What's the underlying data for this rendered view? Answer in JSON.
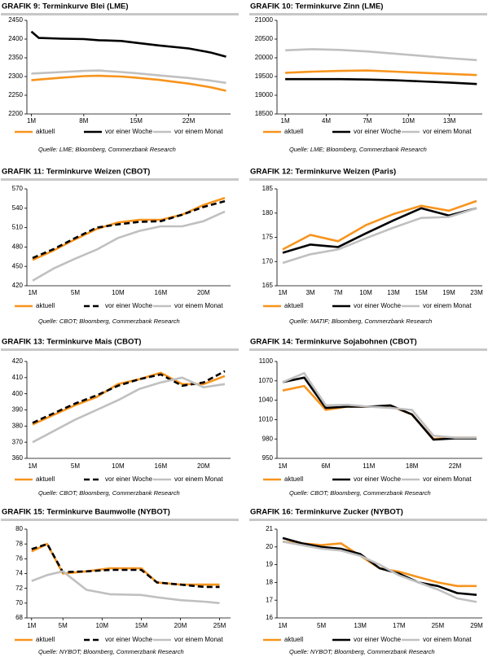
{
  "chart_data": [
    {
      "type": "line",
      "title": "GRAFIK 9: Terminkurve Blei (LME)",
      "source": "Quelle: LME; Bloomberg, Commerzbank Research",
      "x": [
        1,
        2,
        5,
        8,
        10,
        13,
        15,
        18,
        22,
        25,
        27
      ],
      "xlim": [
        0.4,
        27.6
      ],
      "xticks": [
        {
          "value": 1,
          "label": "1M"
        },
        {
          "value": 8,
          "label": "8M"
        },
        {
          "value": 15,
          "label": "15M"
        },
        {
          "value": 22,
          "label": "22M"
        }
      ],
      "ylim": [
        2200,
        2450
      ],
      "yticks": [
        2200,
        2250,
        2300,
        2350,
        2400,
        2450
      ],
      "series": [
        {
          "name": "aktuell",
          "color": "#f7941d",
          "dashed": false,
          "values": [
            2290,
            2292,
            2297,
            2301,
            2302,
            2300,
            2297,
            2291,
            2281,
            2271,
            2262
          ]
        },
        {
          "name": "vor einer Woche",
          "color": "#000000",
          "dashed": false,
          "values": [
            2420,
            2403,
            2401,
            2400,
            2397,
            2395,
            2390,
            2383,
            2375,
            2364,
            2353
          ]
        },
        {
          "name": "vor einem Monat",
          "color": "#c0c0c0",
          "dashed": false,
          "values": [
            2308,
            2309,
            2312,
            2315,
            2316,
            2312,
            2309,
            2303,
            2296,
            2289,
            2283
          ]
        }
      ]
    },
    {
      "type": "line",
      "title": "GRAFIK 10: Terminkurve Zinn (LME)",
      "source": "Quelle: LME; Bloomberg, Commerzbank Research",
      "x": [
        1,
        3,
        5,
        7,
        9,
        11,
        13,
        15
      ],
      "xlim": [
        0.4,
        15.4
      ],
      "xticks": [
        {
          "value": 1,
          "label": "1M"
        },
        {
          "value": 4,
          "label": "4M"
        },
        {
          "value": 7,
          "label": "7M"
        },
        {
          "value": 10,
          "label": "10M"
        },
        {
          "value": 13,
          "label": "13M"
        }
      ],
      "ylim": [
        18500,
        21000
      ],
      "yticks": [
        18500,
        19000,
        19500,
        20000,
        20500,
        21000
      ],
      "series": [
        {
          "name": "aktuell",
          "color": "#f7941d",
          "dashed": false,
          "values": [
            19600,
            19630,
            19650,
            19660,
            19630,
            19600,
            19570,
            19540
          ]
        },
        {
          "name": "vor einer Woche",
          "color": "#000000",
          "dashed": false,
          "values": [
            19430,
            19430,
            19430,
            19420,
            19400,
            19370,
            19340,
            19300
          ]
        },
        {
          "name": "vor einem Monat",
          "color": "#c0c0c0",
          "dashed": false,
          "values": [
            20200,
            20230,
            20210,
            20170,
            20110,
            20050,
            19990,
            19940
          ]
        }
      ]
    },
    {
      "type": "line",
      "title": "GRAFIK 11: Terminkurve Weizen (CBOT)",
      "source": "Quelle: CBOT; Bloomberg, Commerzbank Research",
      "categories": [
        "1M",
        null,
        "5M",
        null,
        "10M",
        null,
        "16M",
        null,
        "20M",
        null
      ],
      "ylim": [
        420,
        570
      ],
      "yticks": [
        420,
        450,
        480,
        510,
        540,
        570
      ],
      "series": [
        {
          "name": "aktuell",
          "color": "#f7941d",
          "dashed": false,
          "values": [
            460,
            475,
            492,
            508,
            518,
            522,
            522,
            530,
            545,
            556
          ]
        },
        {
          "name": "vor einer Woche",
          "color": "#000000",
          "dashed": true,
          "values": [
            463,
            477,
            494,
            510,
            515,
            519,
            520,
            530,
            542,
            551
          ]
        },
        {
          "name": "vor einem Monat",
          "color": "#c0c0c0",
          "dashed": false,
          "values": [
            428,
            447,
            462,
            476,
            494,
            505,
            512,
            512,
            520,
            535
          ]
        }
      ]
    },
    {
      "type": "line",
      "title": "GRAFIK 12: Terminkurve Weizen (Paris)",
      "source": "Quelle: MATIF; Bloomberg, Commerzbank Research",
      "categories": [
        "1M",
        "3M",
        "7M",
        "10M",
        "13M",
        "15M",
        "19M",
        "23M"
      ],
      "ylim": [
        165,
        185
      ],
      "yticks": [
        165,
        170,
        175,
        180,
        185
      ],
      "series": [
        {
          "name": "aktuell",
          "color": "#f7941d",
          "dashed": false,
          "values": [
            172.5,
            175.5,
            174.2,
            177.5,
            179.8,
            181.5,
            180.5,
            182.5
          ]
        },
        {
          "name": "vor einer Woche",
          "color": "#000000",
          "dashed": false,
          "values": [
            171.8,
            173.5,
            173.0,
            175.8,
            178.5,
            181.0,
            179.5,
            181.0
          ]
        },
        {
          "name": "vor einem Monat",
          "color": "#c0c0c0",
          "dashed": false,
          "values": [
            169.7,
            171.5,
            172.5,
            174.8,
            177.0,
            179.0,
            179.2,
            181.0
          ]
        }
      ]
    },
    {
      "type": "line",
      "title": "GRAFIK 13: Terminkurve Mais (CBOT)",
      "source": "Quelle: CBOT; Bloomberg, Commerzbank Research",
      "categories": [
        "1M",
        null,
        "5M",
        null,
        "10M",
        null,
        "16M",
        null,
        "20M",
        null
      ],
      "ylim": [
        360,
        420
      ],
      "yticks": [
        360,
        370,
        380,
        390,
        400,
        410,
        420
      ],
      "series": [
        {
          "name": "aktuell",
          "color": "#f7941d",
          "dashed": false,
          "values": [
            381,
            387,
            393,
            398,
            406,
            409,
            413,
            406,
            406,
            411
          ]
        },
        {
          "name": "vor einer Woche",
          "color": "#000000",
          "dashed": true,
          "values": [
            382,
            388,
            394,
            399,
            405,
            409,
            412,
            405,
            407,
            414
          ]
        },
        {
          "name": "vor einem Monat",
          "color": "#c0c0c0",
          "dashed": false,
          "values": [
            370,
            377,
            384,
            390,
            396,
            403,
            407,
            410,
            404,
            406
          ]
        }
      ]
    },
    {
      "type": "line",
      "title": "GRAFIK 14: Terminkurve Sojabohnen (CBOT)",
      "source": "Quelle: CBOT; Bloomberg, Commerzbank Research",
      "categories": [
        "1M",
        null,
        "6M",
        null,
        "11M",
        null,
        "18M",
        null,
        "22M",
        null
      ],
      "ylim": [
        950,
        1100
      ],
      "yticks": [
        950,
        980,
        1010,
        1040,
        1070,
        1100
      ],
      "series": [
        {
          "name": "aktuell",
          "color": "#f7941d",
          "dashed": false,
          "values": [
            1055,
            1062,
            1025,
            1030,
            1030,
            1031,
            1018,
            980,
            982,
            982
          ]
        },
        {
          "name": "vor einer Woche",
          "color": "#000000",
          "dashed": false,
          "values": [
            1068,
            1075,
            1028,
            1030,
            1030,
            1032,
            1018,
            979,
            981,
            981
          ]
        },
        {
          "name": "vor einem Monat",
          "color": "#c0c0c0",
          "dashed": false,
          "values": [
            1068,
            1082,
            1032,
            1033,
            1030,
            1028,
            1025,
            985,
            982,
            982
          ]
        }
      ]
    },
    {
      "type": "line",
      "title": "GRAFIK 15: Terminkurve Baumwolle (NYBOT)",
      "source": "Quelle: NYBOT; Bloomberg, Commerzbank Research",
      "x": [
        1,
        3,
        5,
        8,
        11,
        15,
        17,
        20,
        23,
        25
      ],
      "xlim": [
        0.4,
        26.4
      ],
      "xticks": [
        {
          "value": 1,
          "label": "1M"
        },
        {
          "value": 5,
          "label": "5M"
        },
        {
          "value": 10,
          "label": "10M"
        },
        {
          "value": 15,
          "label": "15M"
        },
        {
          "value": 20,
          "label": "20M"
        },
        {
          "value": 25,
          "label": "25M"
        }
      ],
      "ylim": [
        68,
        80
      ],
      "yticks": [
        68,
        70,
        72,
        74,
        76,
        78,
        80
      ],
      "series": [
        {
          "name": "aktuell",
          "color": "#f7941d",
          "dashed": false,
          "values": [
            77,
            78,
            74,
            74.3,
            74.7,
            74.7,
            72.8,
            72.5,
            72.5,
            72.5
          ]
        },
        {
          "name": "vor einer Woche",
          "color": "#000000",
          "dashed": true,
          "values": [
            77.3,
            78,
            74.2,
            74.3,
            74.5,
            74.5,
            72.8,
            72.5,
            72.2,
            72.2
          ]
        },
        {
          "name": "vor einem Monat",
          "color": "#c0c0c0",
          "dashed": false,
          "values": [
            73,
            73.8,
            74.3,
            71.8,
            71.2,
            71.1,
            70.8,
            70.4,
            70.2,
            70.0
          ]
        }
      ]
    },
    {
      "type": "line",
      "title": "GRAFIK 16: Terminkurve Zucker (NYBOT)",
      "source": "Quelle: NYBOT; Bloomberg, Commerzbank Research",
      "categories": [
        "1M",
        null,
        "5M",
        null,
        "13M",
        null,
        "17M",
        null,
        "25M",
        null,
        "29M"
      ],
      "ylim": [
        16,
        21
      ],
      "yticks": [
        16,
        17,
        18,
        19,
        20,
        21
      ],
      "series": [
        {
          "name": "aktuell",
          "color": "#f7941d",
          "dashed": false,
          "values": [
            20.3,
            20.2,
            20.1,
            20.2,
            19.5,
            18.8,
            18.6,
            18.3,
            18.0,
            17.8,
            17.8
          ]
        },
        {
          "name": "vor einer Woche",
          "color": "#000000",
          "dashed": false,
          "values": [
            20.5,
            20.2,
            20.0,
            19.9,
            19.6,
            18.8,
            18.5,
            18.0,
            17.8,
            17.4,
            17.3
          ]
        },
        {
          "name": "vor einem Monat",
          "color": "#c0c0c0",
          "dashed": false,
          "values": [
            20.3,
            20.1,
            19.9,
            19.8,
            19.5,
            19.0,
            18.4,
            18.0,
            17.6,
            17.1,
            16.9
          ]
        }
      ]
    }
  ]
}
